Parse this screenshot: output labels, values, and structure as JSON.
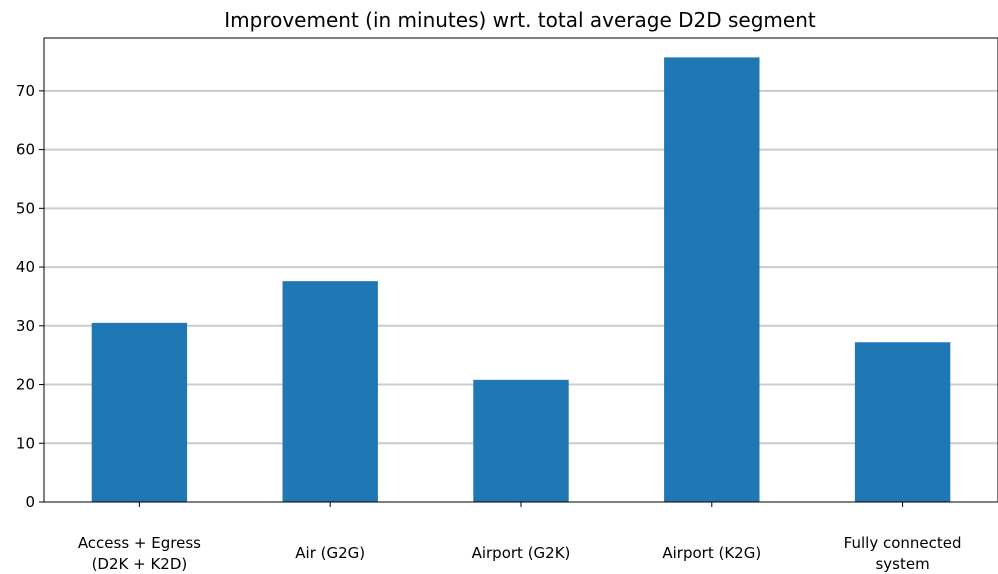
{
  "chart_data": {
    "type": "bar",
    "title": "Improvement (in minutes) wrt. total average D2D segment",
    "xlabel": "",
    "ylabel": "",
    "categories": [
      [
        "Access + Egress",
        "(D2K + K2D)"
      ],
      [
        "Air (G2G)"
      ],
      [
        "Airport (G2K)"
      ],
      [
        "Airport (K2G)"
      ],
      [
        "Fully connected",
        "system"
      ]
    ],
    "values": [
      30.5,
      37.6,
      20.8,
      75.7,
      27.2
    ],
    "ylim": [
      0,
      79
    ],
    "yticks": [
      0,
      10,
      20,
      30,
      40,
      50,
      60,
      70
    ],
    "grid": "horizontal",
    "colors": {
      "bar": "#1f77b4",
      "grid": "#cccccc",
      "axis": "#000000"
    }
  }
}
